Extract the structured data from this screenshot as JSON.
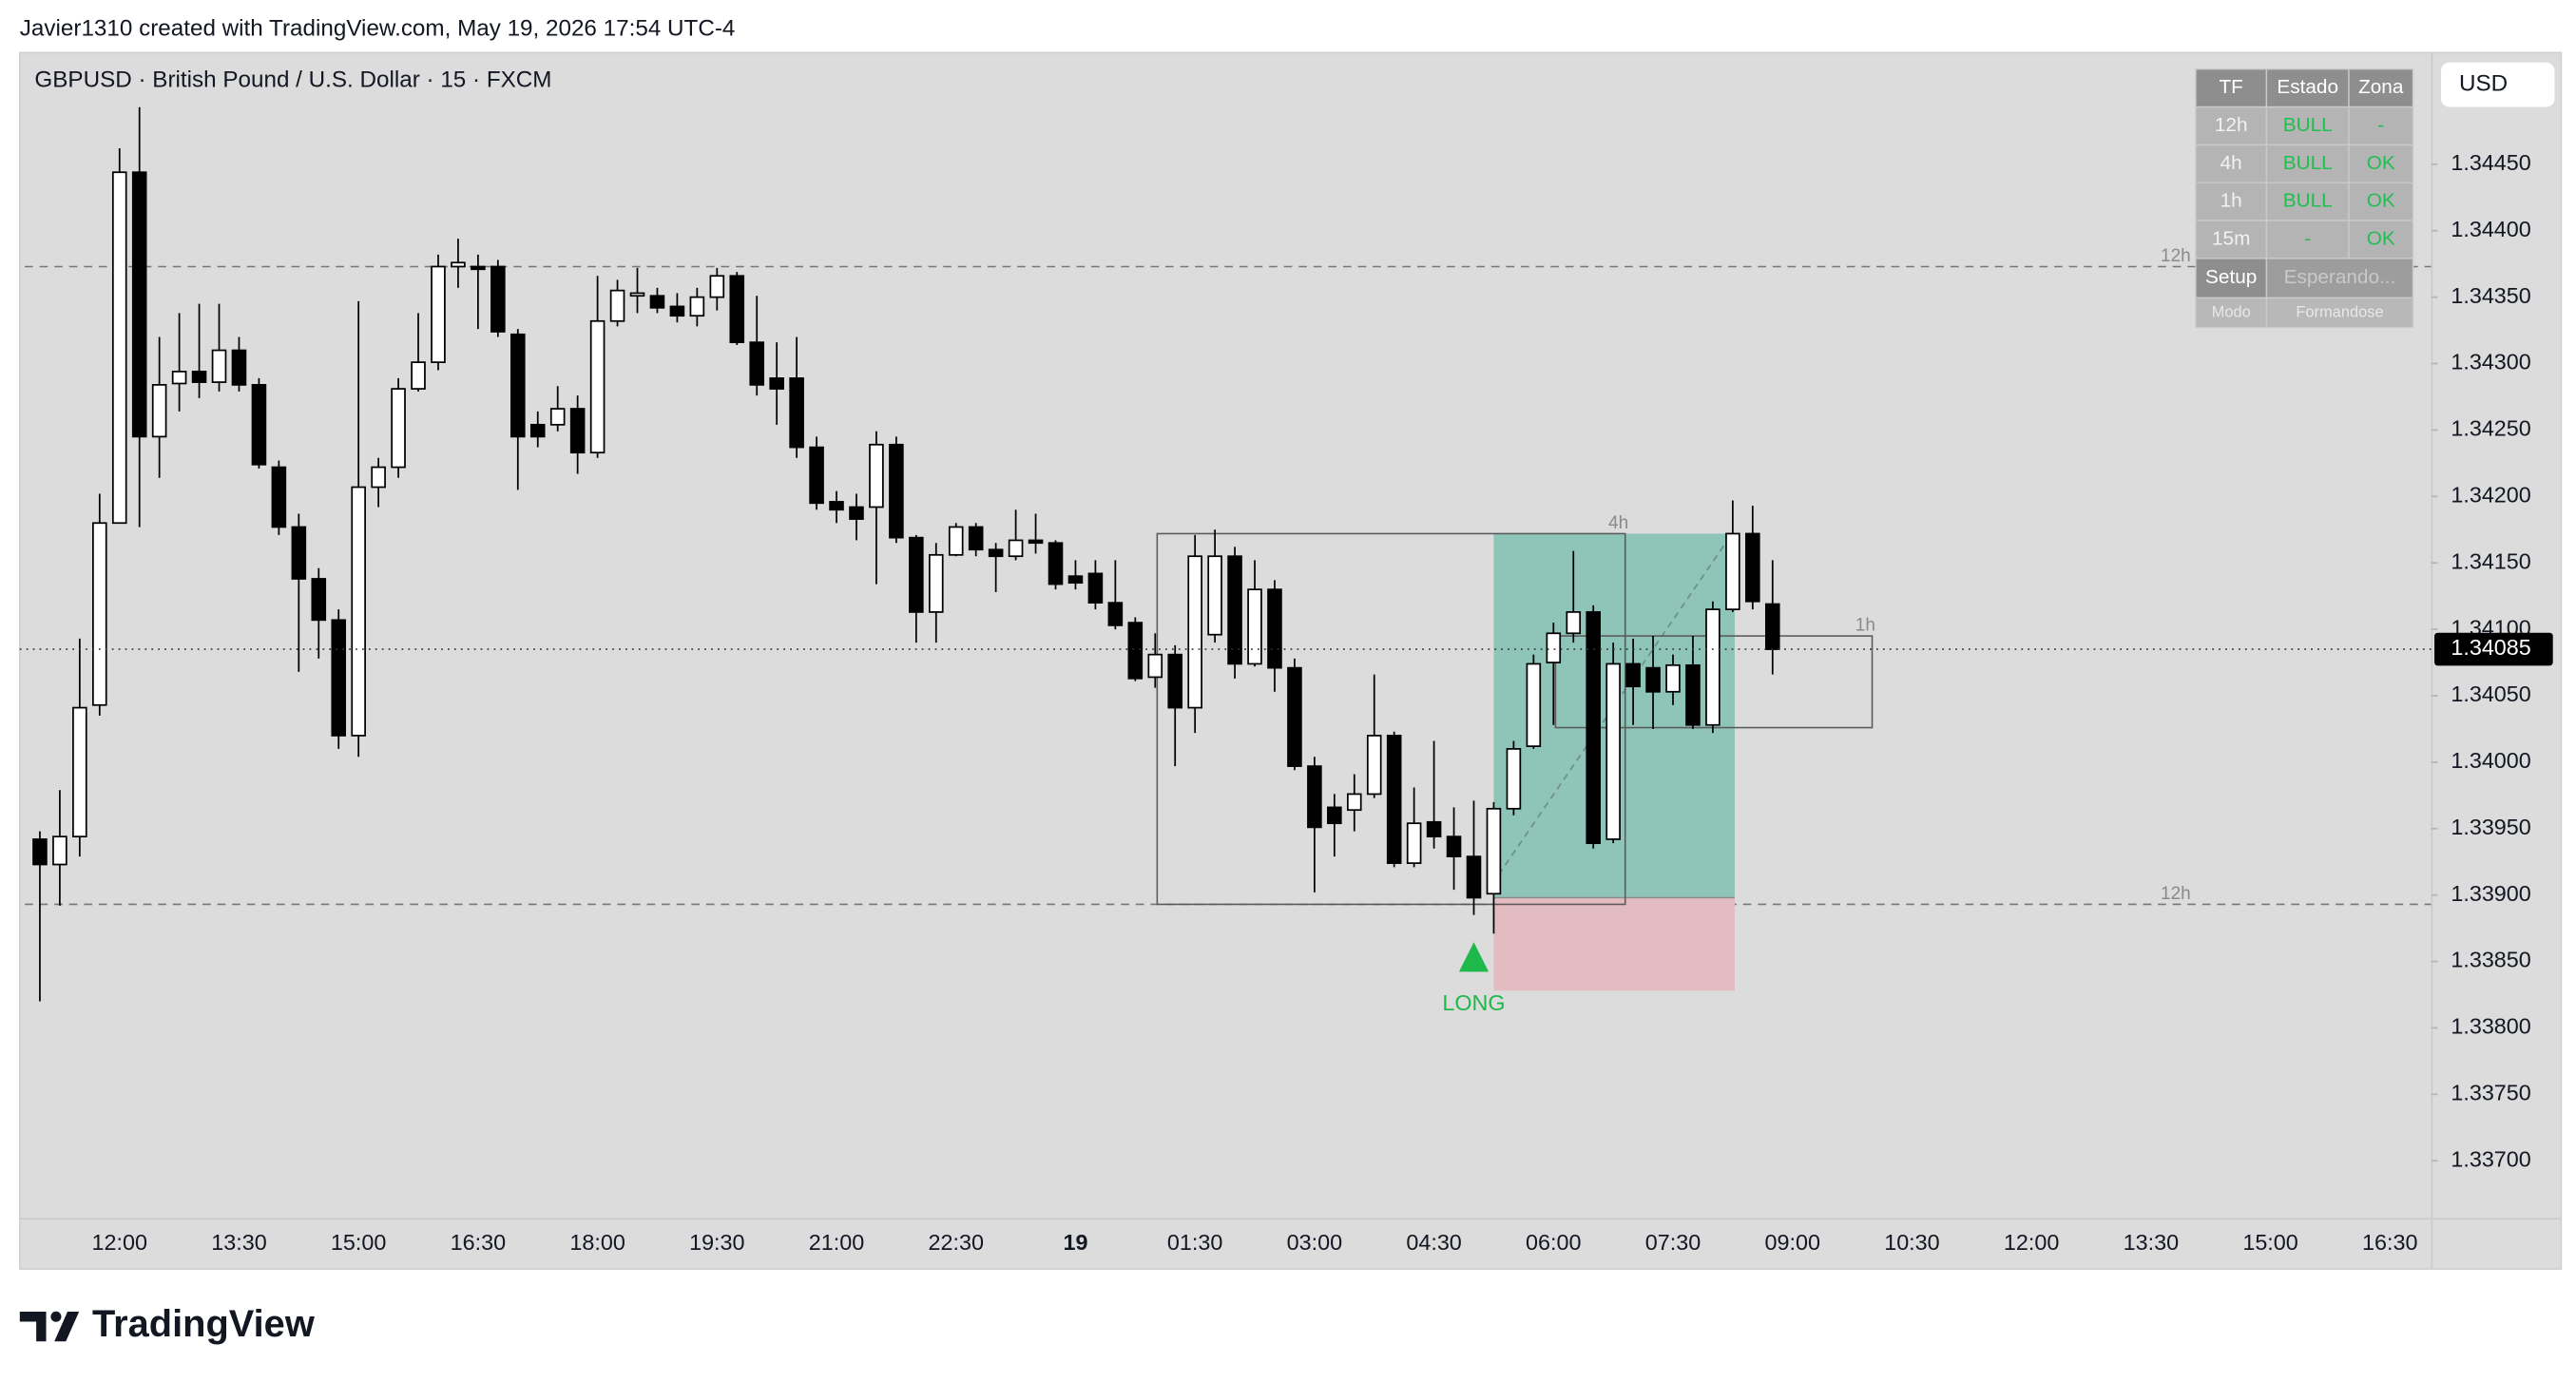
{
  "header": {
    "credit": "Javier1310 created with TradingView.com, May 19, 2026 17:54 UTC-4"
  },
  "footer": {
    "brand": "TradingView"
  },
  "table": {
    "header": [
      "TF",
      "Estado",
      "Zona"
    ],
    "rows": [
      [
        "12h",
        "BULL",
        "-"
      ],
      [
        "4h",
        "BULL",
        "OK"
      ],
      [
        "1h",
        "BULL",
        "OK"
      ],
      [
        "15m",
        "-",
        "OK"
      ]
    ],
    "footer": [
      [
        "Setup",
        "Esperando..."
      ],
      [
        "Modo",
        "Formandose"
      ]
    ]
  },
  "chart_data": {
    "type": "candlestick",
    "title": "GBPUSD · British Pound / U.S. Dollar · 15 · FXCM",
    "currency": "USD",
    "up_color": "#ffffff",
    "down_color": "#000000",
    "categories": [
      null,
      null,
      null,
      null,
      "12:00",
      null,
      null,
      null,
      null,
      null,
      "13:30",
      null,
      null,
      null,
      null,
      null,
      "15:00",
      null,
      null,
      null,
      null,
      null,
      "16:30",
      null,
      null,
      null,
      null,
      null,
      "18:00",
      null,
      null,
      null,
      null,
      null,
      "19:30",
      null,
      null,
      null,
      null,
      null,
      "21:00",
      null,
      null,
      null,
      null,
      null,
      "22:30",
      null,
      null,
      null,
      null,
      null,
      "19",
      null,
      null,
      null,
      null,
      null,
      "01:30",
      null,
      null,
      null,
      null,
      null,
      "03:00",
      null,
      null,
      null,
      null,
      null,
      "04:30",
      null,
      null,
      null,
      null,
      null,
      "06:00",
      null,
      null,
      null,
      null,
      null,
      "07:30",
      null,
      null,
      null,
      null,
      null,
      "09:00",
      null,
      null,
      null,
      null,
      null,
      "10:30",
      null,
      null,
      null,
      null,
      null,
      "12:00",
      null,
      null,
      null,
      null,
      null,
      "13:30",
      null,
      null,
      null,
      null,
      null,
      "15:00",
      null,
      null,
      null,
      null,
      null,
      "16:30"
    ],
    "open": [
      1.33942,
      1.33923,
      1.33944,
      1.34043,
      1.3418,
      1.34444,
      1.34245,
      1.34285,
      1.34294,
      1.34286,
      1.3431,
      1.34284,
      1.34222,
      1.34177,
      1.34138,
      1.34107,
      1.3402,
      1.34207,
      1.34222,
      1.34281,
      1.34301,
      1.34373,
      1.34373,
      1.34373,
      1.34322,
      1.34254,
      1.34254,
      1.34266,
      1.34233,
      1.34332,
      1.34351,
      1.34351,
      1.34343,
      1.34336,
      1.3435,
      1.34366,
      1.34316,
      1.34289,
      1.34289,
      1.34237,
      1.34196,
      1.34192,
      1.34192,
      1.34239,
      1.34169,
      1.34113,
      1.34156,
      1.34177,
      1.3416,
      1.34155,
      1.34167,
      1.34165,
      1.3414,
      1.34142,
      1.3412,
      1.34105,
      1.34064,
      1.34081,
      1.34041,
      1.34096,
      1.34155,
      1.34074,
      1.3413,
      1.34071,
      1.33997,
      1.33966,
      1.33964,
      1.33976,
      1.3402,
      1.33924,
      1.33955,
      1.33944,
      1.33929,
      1.33901,
      1.33965,
      1.34012,
      1.34075,
      1.34097,
      1.34113,
      1.33942,
      1.34074,
      1.34071,
      1.34053,
      1.34073,
      1.34028,
      1.34115,
      1.34172,
      1.34119,
      null,
      null,
      null,
      null,
      null,
      null,
      null,
      null,
      null,
      null,
      null,
      null,
      null,
      null,
      null,
      null,
      null,
      null,
      null,
      null,
      null,
      null,
      null,
      null,
      null,
      null,
      null,
      null,
      null,
      null,
      null
    ],
    "high": [
      1.33948,
      1.33979,
      1.34093,
      1.34202,
      1.34462,
      1.34493,
      1.3432,
      1.34338,
      1.34345,
      1.34345,
      1.3432,
      1.34289,
      1.34227,
      1.34187,
      1.34146,
      1.34115,
      1.34347,
      1.34229,
      1.34289,
      1.34338,
      1.34382,
      1.34394,
      1.34382,
      1.34378,
      1.34326,
      1.34264,
      1.34283,
      1.34276,
      1.34366,
      1.34363,
      1.34372,
      1.34357,
      1.34353,
      1.34357,
      1.34372,
      1.34369,
      1.34351,
      1.34316,
      1.3432,
      1.34245,
      1.34204,
      1.34202,
      1.34249,
      1.34245,
      1.34171,
      1.34165,
      1.3418,
      1.3418,
      1.34165,
      1.3419,
      1.34187,
      1.34167,
      1.34152,
      1.34152,
      1.34152,
      1.34109,
      1.34097,
      1.34088,
      1.34171,
      1.34175,
      1.34162,
      1.34152,
      1.34137,
      1.34078,
      1.34004,
      1.33976,
      1.33991,
      1.34066,
      1.34023,
      1.33981,
      1.34016,
      1.33966,
      1.33971,
      1.3397,
      1.34016,
      1.34081,
      1.34105,
      1.34159,
      1.34118,
      1.3409,
      1.34093,
      1.34095,
      1.34081,
      1.34095,
      1.34121,
      1.34197,
      1.34193,
      1.34152,
      null,
      null,
      null,
      null,
      null,
      null,
      null,
      null,
      null,
      null,
      null,
      null,
      null,
      null,
      null,
      null,
      null,
      null,
      null,
      null,
      null,
      null,
      null,
      null,
      null,
      null,
      null,
      null,
      null,
      null,
      null
    ],
    "low": [
      1.3382,
      1.33892,
      1.33929,
      1.34035,
      1.3418,
      1.34177,
      1.34214,
      1.34264,
      1.34274,
      1.34279,
      1.34279,
      1.34221,
      1.34171,
      1.34068,
      1.34078,
      1.3401,
      1.34004,
      1.34192,
      1.34214,
      1.34279,
      1.34295,
      1.34357,
      1.34326,
      1.3432,
      1.34205,
      1.34237,
      1.34249,
      1.34217,
      1.34229,
      1.34328,
      1.34338,
      1.34338,
      1.34331,
      1.34328,
      1.3434,
      1.34314,
      1.34276,
      1.34254,
      1.34229,
      1.3419,
      1.3418,
      1.34167,
      1.34134,
      1.34165,
      1.3409,
      1.3409,
      1.34155,
      1.34155,
      1.34128,
      1.34152,
      1.34157,
      1.3413,
      1.3413,
      1.34115,
      1.341,
      1.34061,
      1.34056,
      1.33997,
      1.34022,
      1.3409,
      1.34063,
      1.34072,
      1.34053,
      1.33994,
      1.33902,
      1.33929,
      1.33948,
      1.33973,
      1.33921,
      1.33921,
      1.33935,
      1.33904,
      1.33885,
      1.33871,
      1.3396,
      1.3401,
      1.34028,
      1.3409,
      1.33935,
      1.33939,
      1.34028,
      1.34025,
      1.34043,
      1.34025,
      1.34022,
      1.34113,
      1.34115,
      1.34066,
      null,
      null,
      null,
      null,
      null,
      null,
      null,
      null,
      null,
      null,
      null,
      null,
      null,
      null,
      null,
      null,
      null,
      null,
      null,
      null,
      null,
      null,
      null,
      null,
      null,
      null,
      null,
      null,
      null,
      null,
      null
    ],
    "close": [
      1.33923,
      1.33944,
      1.34041,
      1.3418,
      1.34444,
      1.34245,
      1.34284,
      1.34294,
      1.34286,
      1.3431,
      1.34284,
      1.34224,
      1.34177,
      1.34138,
      1.34107,
      1.3402,
      1.34207,
      1.34222,
      1.34281,
      1.34301,
      1.34373,
      1.34376,
      1.34371,
      1.34324,
      1.34245,
      1.34245,
      1.34266,
      1.34233,
      1.34332,
      1.34355,
      1.34353,
      1.34342,
      1.34336,
      1.3435,
      1.34366,
      1.34316,
      1.34284,
      1.34281,
      1.34237,
      1.34195,
      1.3419,
      1.34183,
      1.34239,
      1.34169,
      1.34113,
      1.34156,
      1.34177,
      1.3416,
      1.34155,
      1.34167,
      1.34165,
      1.34134,
      1.34135,
      1.3412,
      1.34103,
      1.34063,
      1.34081,
      1.34041,
      1.34155,
      1.34155,
      1.34074,
      1.3413,
      1.34071,
      1.33997,
      1.33951,
      1.33954,
      1.33976,
      1.3402,
      1.33924,
      1.33954,
      1.33944,
      1.33929,
      1.33898,
      1.33965,
      1.3401,
      1.34074,
      1.34097,
      1.34113,
      1.33939,
      1.34074,
      1.34057,
      1.34053,
      1.34073,
      1.34028,
      1.34115,
      1.34172,
      1.34121,
      1.34085,
      null,
      null,
      null,
      null,
      null,
      null,
      null,
      null,
      null,
      null,
      null,
      null,
      null,
      null,
      null,
      null,
      null,
      null,
      null,
      null,
      null,
      null,
      null,
      null,
      null,
      null,
      null,
      null,
      null,
      null,
      null
    ],
    "ylim": [
      1.33657,
      1.34534
    ],
    "yticks": [
      {
        "value": 1.337,
        "label": "1.33700"
      },
      {
        "value": 1.3375,
        "label": "1.33750"
      },
      {
        "value": 1.338,
        "label": "1.33800"
      },
      {
        "value": 1.3385,
        "label": "1.33850"
      },
      {
        "value": 1.339,
        "label": "1.33900"
      },
      {
        "value": 1.3395,
        "label": "1.33950"
      },
      {
        "value": 1.34,
        "label": "1.34000"
      },
      {
        "value": 1.3405,
        "label": "1.34050"
      },
      {
        "value": 1.341,
        "label": "1.34100"
      },
      {
        "value": 1.3415,
        "label": "1.34150"
      },
      {
        "value": 1.342,
        "label": "1.34200"
      },
      {
        "value": 1.3425,
        "label": "1.34250"
      },
      {
        "value": 1.343,
        "label": "1.34300"
      },
      {
        "value": 1.3435,
        "label": "1.34350"
      },
      {
        "value": 1.344,
        "label": "1.34400"
      },
      {
        "value": 1.3445,
        "label": "1.34450"
      }
    ],
    "last_price": 1.34085,
    "levels": [
      {
        "value": 1.34373,
        "label": "12h"
      },
      {
        "value": 1.33893,
        "label": "12h"
      }
    ],
    "zones": [
      {
        "label": "4h",
        "x0": 56.1,
        "x1": 79.6,
        "top": 1.34172,
        "bottom": 1.33893
      },
      {
        "label": "1h",
        "x0": 76.1,
        "x1": 92.0,
        "top": 1.34095,
        "bottom": 1.34026
      }
    ],
    "position": {
      "label": "LONG",
      "x0": 73,
      "x1": 85.1,
      "entry": 1.33898,
      "target": 1.34172,
      "stop": 1.33828,
      "signal_index": 72
    }
  }
}
